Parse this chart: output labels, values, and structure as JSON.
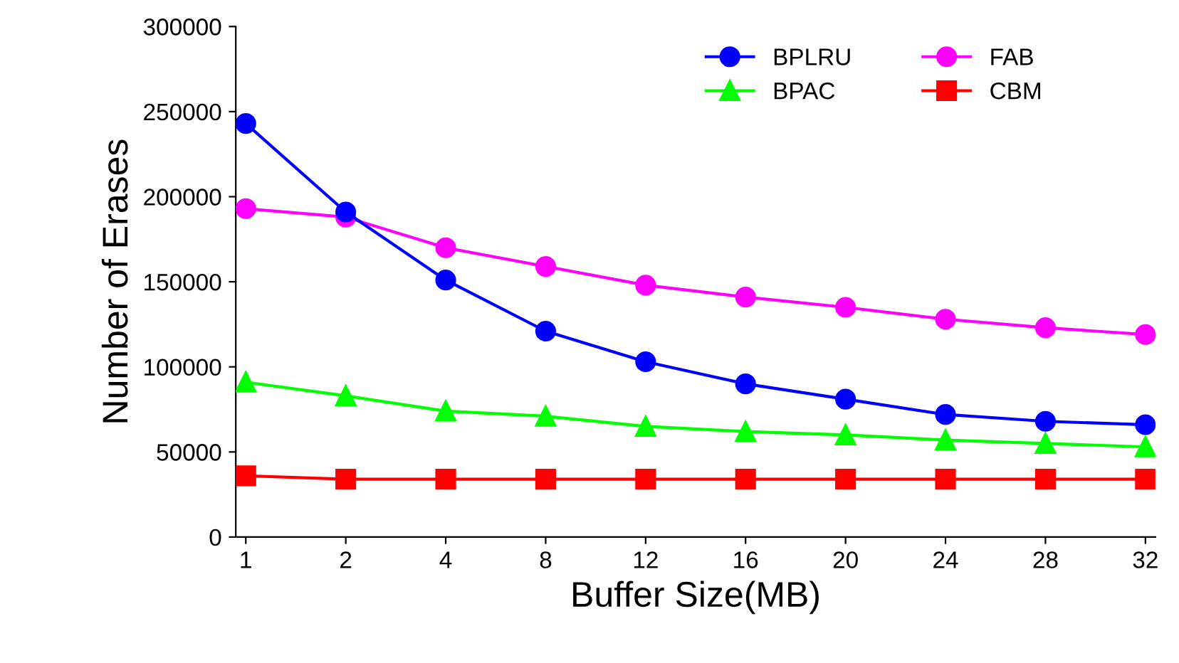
{
  "chart_data": {
    "type": "line",
    "xlabel": "Buffer Size(MB)",
    "ylabel": "Number of Erases",
    "categories": [
      "1",
      "2",
      "4",
      "8",
      "12",
      "16",
      "20",
      "24",
      "28",
      "32"
    ],
    "series": [
      {
        "name": "BPLRU",
        "color": "#0000ff",
        "marker": "circle",
        "values": [
          243000,
          191000,
          151000,
          121000,
          103000,
          90000,
          81000,
          72000,
          68000,
          66000
        ]
      },
      {
        "name": "FAB",
        "color": "#ff00ff",
        "marker": "circle",
        "values": [
          193000,
          188000,
          170000,
          159000,
          148000,
          141000,
          135000,
          128000,
          123000,
          119000
        ]
      },
      {
        "name": "BPAC",
        "color": "#00ff00",
        "marker": "triangle",
        "values": [
          91000,
          83000,
          74000,
          71000,
          65000,
          62000,
          60000,
          57000,
          55000,
          53000
        ]
      },
      {
        "name": "CBM",
        "color": "#ff0000",
        "marker": "square",
        "values": [
          36000,
          34000,
          34000,
          34000,
          34000,
          34000,
          34000,
          34000,
          34000,
          34000
        ]
      }
    ],
    "ylim": [
      0,
      300000
    ],
    "yticks": [
      0,
      50000,
      100000,
      150000,
      200000,
      250000,
      300000
    ],
    "grid": false,
    "legend": "top right",
    "line_style": "solid"
  }
}
